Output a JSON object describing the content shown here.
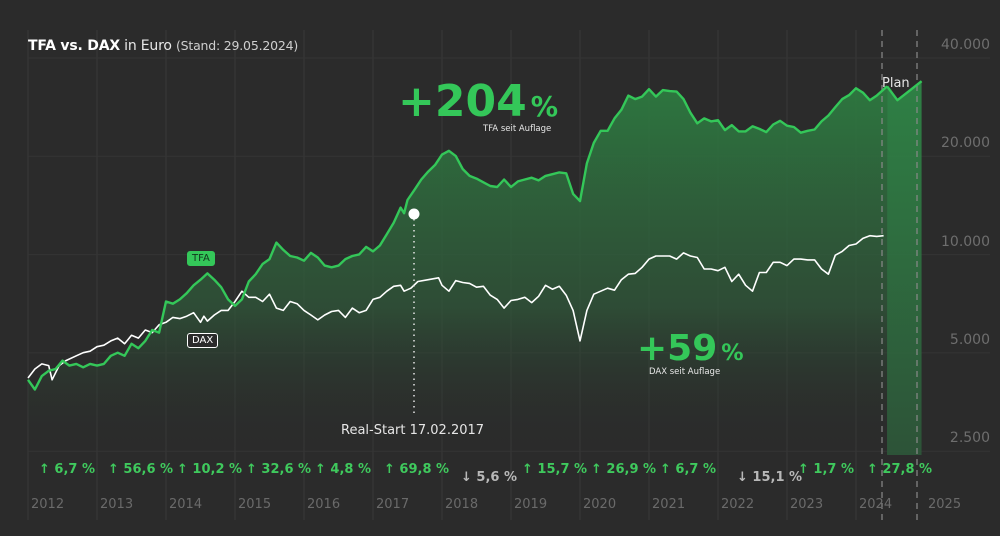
{
  "title": {
    "bold": "TFA vs. DAX",
    "normal": " in Euro ",
    "stand": "(Stand: 29.05.2024)"
  },
  "colors": {
    "background": "#2b2b2b",
    "tfa_line": "#34c759",
    "dax_line": "#ffffff",
    "up_return": "#3fc95d",
    "down_return": "#b8b8b8",
    "grid": "#3a3a3a",
    "axis_text": "#6e6e6e"
  },
  "annotations": {
    "tfa_big": "+204",
    "tfa_big_pct": "%",
    "tfa_sub": "TFA seit Auflage",
    "dax_big": "+59",
    "dax_big_pct": "%",
    "dax_sub": "DAX seit Auflage",
    "tfa_tag": "TFA",
    "dax_tag": "DAX",
    "real_start": "Real-Start 17.02.2017",
    "plan": "Plan"
  },
  "y_axis": {
    "ticks": [
      "40.000",
      "20.000",
      "10.000",
      "5.000",
      "2.500"
    ]
  },
  "x_axis": {
    "years": [
      "2012",
      "2013",
      "2014",
      "2015",
      "2016",
      "2017",
      "2018",
      "2019",
      "2020",
      "2021",
      "2022",
      "2023",
      "2024",
      "2025"
    ]
  },
  "yearly_returns": [
    {
      "year": "2012",
      "dir": "up",
      "arrow": "↑",
      "label": "6,7 %"
    },
    {
      "year": "2013",
      "dir": "up",
      "arrow": "↑",
      "label": "56,6 %"
    },
    {
      "year": "2014",
      "dir": "up",
      "arrow": "↑",
      "label": "10,2 %"
    },
    {
      "year": "2015",
      "dir": "up",
      "arrow": "↑",
      "label": "32,6 %"
    },
    {
      "year": "2016",
      "dir": "up",
      "arrow": "↑",
      "label": "4,8 %"
    },
    {
      "year": "2017",
      "dir": "up",
      "arrow": "↑",
      "label": "69,8 %"
    },
    {
      "year": "2018",
      "dir": "down",
      "arrow": "↓",
      "label": "5,6 %"
    },
    {
      "year": "2019",
      "dir": "up",
      "arrow": "↑",
      "label": "15,7 %"
    },
    {
      "year": "2020",
      "dir": "up",
      "arrow": "↑",
      "label": "26,9 %"
    },
    {
      "year": "2021",
      "dir": "up",
      "arrow": "↑",
      "label": "6,7 %"
    },
    {
      "year": "2022",
      "dir": "down",
      "arrow": "↓",
      "label": "15,1 %"
    },
    {
      "year": "2023",
      "dir": "up",
      "arrow": "↑",
      "label": "1,7 %"
    },
    {
      "year": "2024",
      "dir": "up",
      "arrow": "↑",
      "label": "27,8 %"
    }
  ],
  "chart_data": {
    "type": "line",
    "title": "TFA vs. DAX in Euro (Stand: 29.05.2024)",
    "xlabel": "",
    "ylabel": "",
    "y_scale": "log",
    "ylim": [
      2500,
      40000
    ],
    "y_ticks": [
      2500,
      5000,
      10000,
      20000,
      40000
    ],
    "x_ticks": [
      2012,
      2013,
      2014,
      2015,
      2016,
      2017,
      2018,
      2019,
      2020,
      2021,
      2022,
      2023,
      2024,
      2025
    ],
    "grid": true,
    "legend": "inline labels",
    "series": [
      {
        "name": "TFA",
        "color": "#34c759",
        "total_return_label": "+204 % TFA seit Auflage",
        "points": [
          [
            2012.0,
            3800
          ],
          [
            2012.1,
            3550
          ],
          [
            2012.2,
            3900
          ],
          [
            2012.3,
            4050
          ],
          [
            2012.4,
            4100
          ],
          [
            2012.5,
            4350
          ],
          [
            2012.6,
            4200
          ],
          [
            2012.7,
            4250
          ],
          [
            2012.8,
            4150
          ],
          [
            2012.9,
            4250
          ],
          [
            2013.0,
            4200
          ],
          [
            2013.1,
            4250
          ],
          [
            2013.2,
            4500
          ],
          [
            2013.3,
            4600
          ],
          [
            2013.4,
            4500
          ],
          [
            2013.5,
            4900
          ],
          [
            2013.6,
            4750
          ],
          [
            2013.7,
            5000
          ],
          [
            2013.8,
            5400
          ],
          [
            2013.9,
            5300
          ],
          [
            2014.0,
            6600
          ],
          [
            2014.1,
            6500
          ],
          [
            2014.2,
            6700
          ],
          [
            2014.3,
            7000
          ],
          [
            2014.4,
            7400
          ],
          [
            2014.5,
            7700
          ],
          [
            2014.6,
            8050
          ],
          [
            2014.7,
            7700
          ],
          [
            2014.8,
            7300
          ],
          [
            2014.9,
            6700
          ],
          [
            2015.0,
            6400
          ],
          [
            2015.1,
            6700
          ],
          [
            2015.2,
            7600
          ],
          [
            2015.3,
            8000
          ],
          [
            2015.4,
            8600
          ],
          [
            2015.5,
            8900
          ],
          [
            2015.6,
            10000
          ],
          [
            2015.7,
            9500
          ],
          [
            2015.8,
            9100
          ],
          [
            2015.9,
            9000
          ],
          [
            2016.0,
            8800
          ],
          [
            2016.1,
            9300
          ],
          [
            2016.2,
            9000
          ],
          [
            2016.3,
            8500
          ],
          [
            2016.4,
            8400
          ],
          [
            2016.5,
            8500
          ],
          [
            2016.6,
            8900
          ],
          [
            2016.7,
            9100
          ],
          [
            2016.8,
            9200
          ],
          [
            2016.9,
            9700
          ],
          [
            2017.0,
            9400
          ],
          [
            2017.1,
            9800
          ],
          [
            2017.2,
            10600
          ],
          [
            2017.3,
            11500
          ],
          [
            2017.4,
            12800
          ],
          [
            2017.45,
            12300
          ],
          [
            2017.5,
            13500
          ],
          [
            2017.6,
            14500
          ],
          [
            2017.7,
            15600
          ],
          [
            2017.8,
            16500
          ],
          [
            2017.9,
            17300
          ],
          [
            2018.0,
            18600
          ],
          [
            2018.1,
            19100
          ],
          [
            2018.2,
            18400
          ],
          [
            2018.3,
            16800
          ],
          [
            2018.4,
            16000
          ],
          [
            2018.5,
            15700
          ],
          [
            2018.6,
            15300
          ],
          [
            2018.7,
            14900
          ],
          [
            2018.8,
            14800
          ],
          [
            2018.9,
            15600
          ],
          [
            2019.0,
            14800
          ],
          [
            2019.1,
            15400
          ],
          [
            2019.2,
            15600
          ],
          [
            2019.3,
            15800
          ],
          [
            2019.4,
            15500
          ],
          [
            2019.5,
            16000
          ],
          [
            2019.6,
            16200
          ],
          [
            2019.7,
            16400
          ],
          [
            2019.8,
            16300
          ],
          [
            2019.9,
            14100
          ],
          [
            2020.0,
            13400
          ],
          [
            2020.1,
            17500
          ],
          [
            2020.2,
            20200
          ],
          [
            2020.3,
            22000
          ],
          [
            2020.4,
            22000
          ],
          [
            2020.5,
            24000
          ],
          [
            2020.6,
            25500
          ],
          [
            2020.7,
            28200
          ],
          [
            2020.8,
            27500
          ],
          [
            2020.9,
            28000
          ],
          [
            2021.0,
            29500
          ],
          [
            2021.1,
            28000
          ],
          [
            2021.2,
            29300
          ],
          [
            2021.3,
            29100
          ],
          [
            2021.4,
            29000
          ],
          [
            2021.5,
            27500
          ],
          [
            2021.6,
            25000
          ],
          [
            2021.7,
            23200
          ],
          [
            2021.8,
            24000
          ],
          [
            2021.9,
            23500
          ],
          [
            2022.0,
            23700
          ],
          [
            2022.1,
            22100
          ],
          [
            2022.2,
            22900
          ],
          [
            2022.3,
            21900
          ],
          [
            2022.4,
            21900
          ],
          [
            2022.5,
            22700
          ],
          [
            2022.6,
            22300
          ],
          [
            2022.7,
            21800
          ],
          [
            2022.8,
            23000
          ],
          [
            2022.9,
            23600
          ],
          [
            2023.0,
            22800
          ],
          [
            2023.1,
            22600
          ],
          [
            2023.2,
            21700
          ],
          [
            2023.3,
            22000
          ],
          [
            2023.4,
            22200
          ],
          [
            2023.5,
            23500
          ],
          [
            2023.6,
            24500
          ],
          [
            2023.7,
            26000
          ],
          [
            2023.8,
            27500
          ],
          [
            2023.9,
            28300
          ],
          [
            2024.0,
            29700
          ],
          [
            2024.1,
            28800
          ],
          [
            2024.2,
            27300
          ],
          [
            2024.3,
            28200
          ],
          [
            2024.45,
            30100
          ]
        ]
      },
      {
        "name": "DAX",
        "color": "#ffffff",
        "total_return_label": "+59 % DAX seit Auflage",
        "points": [
          [
            2012.0,
            3850
          ],
          [
            2012.1,
            4100
          ],
          [
            2012.2,
            4250
          ],
          [
            2012.3,
            4200
          ],
          [
            2012.35,
            3800
          ],
          [
            2012.45,
            4200
          ],
          [
            2012.55,
            4350
          ],
          [
            2012.7,
            4500
          ],
          [
            2012.8,
            4600
          ],
          [
            2012.9,
            4650
          ],
          [
            2013.0,
            4800
          ],
          [
            2013.1,
            4850
          ],
          [
            2013.2,
            5000
          ],
          [
            2013.3,
            5100
          ],
          [
            2013.4,
            4900
          ],
          [
            2013.5,
            5200
          ],
          [
            2013.6,
            5100
          ],
          [
            2013.7,
            5400
          ],
          [
            2013.8,
            5300
          ],
          [
            2013.9,
            5600
          ],
          [
            2014.0,
            5700
          ],
          [
            2014.1,
            5900
          ],
          [
            2014.2,
            5850
          ],
          [
            2014.3,
            5950
          ],
          [
            2014.4,
            6100
          ],
          [
            2014.5,
            5700
          ],
          [
            2014.55,
            5950
          ],
          [
            2014.6,
            5750
          ],
          [
            2014.7,
            6000
          ],
          [
            2014.8,
            6200
          ],
          [
            2014.9,
            6200
          ],
          [
            2015.0,
            6600
          ],
          [
            2015.1,
            7100
          ],
          [
            2015.2,
            6800
          ],
          [
            2015.3,
            6800
          ],
          [
            2015.4,
            6600
          ],
          [
            2015.5,
            6950
          ],
          [
            2015.6,
            6300
          ],
          [
            2015.7,
            6200
          ],
          [
            2015.8,
            6600
          ],
          [
            2015.9,
            6500
          ],
          [
            2016.0,
            6200
          ],
          [
            2016.1,
            6000
          ],
          [
            2016.2,
            5800
          ],
          [
            2016.3,
            6000
          ],
          [
            2016.4,
            6150
          ],
          [
            2016.5,
            6200
          ],
          [
            2016.6,
            5900
          ],
          [
            2016.7,
            6300
          ],
          [
            2016.8,
            6100
          ],
          [
            2016.9,
            6200
          ],
          [
            2017.0,
            6700
          ],
          [
            2017.1,
            6800
          ],
          [
            2017.2,
            7100
          ],
          [
            2017.3,
            7350
          ],
          [
            2017.4,
            7400
          ],
          [
            2017.45,
            7100
          ],
          [
            2017.55,
            7250
          ],
          [
            2017.65,
            7600
          ],
          [
            2017.8,
            7700
          ],
          [
            2017.95,
            7800
          ],
          [
            2018.0,
            7400
          ],
          [
            2018.1,
            7100
          ],
          [
            2018.2,
            7650
          ],
          [
            2018.3,
            7550
          ],
          [
            2018.4,
            7500
          ],
          [
            2018.5,
            7300
          ],
          [
            2018.6,
            7350
          ],
          [
            2018.7,
            6900
          ],
          [
            2018.8,
            6700
          ],
          [
            2018.9,
            6300
          ],
          [
            2019.0,
            6650
          ],
          [
            2019.1,
            6700
          ],
          [
            2019.2,
            6800
          ],
          [
            2019.3,
            6550
          ],
          [
            2019.4,
            6850
          ],
          [
            2019.5,
            7400
          ],
          [
            2019.6,
            7200
          ],
          [
            2019.7,
            7350
          ],
          [
            2019.8,
            6900
          ],
          [
            2019.9,
            6200
          ],
          [
            2020.0,
            5000
          ],
          [
            2020.1,
            6200
          ],
          [
            2020.2,
            6950
          ],
          [
            2020.3,
            7100
          ],
          [
            2020.4,
            7250
          ],
          [
            2020.5,
            7150
          ],
          [
            2020.6,
            7700
          ],
          [
            2020.7,
            8000
          ],
          [
            2020.8,
            8050
          ],
          [
            2020.9,
            8400
          ],
          [
            2021.0,
            8900
          ],
          [
            2021.1,
            9100
          ],
          [
            2021.2,
            9100
          ],
          [
            2021.3,
            9100
          ],
          [
            2021.4,
            8900
          ],
          [
            2021.5,
            9300
          ],
          [
            2021.6,
            9100
          ],
          [
            2021.7,
            9000
          ],
          [
            2021.8,
            8300
          ],
          [
            2021.9,
            8300
          ],
          [
            2022.0,
            8200
          ],
          [
            2022.1,
            8400
          ],
          [
            2022.2,
            7600
          ],
          [
            2022.3,
            8000
          ],
          [
            2022.4,
            7400
          ],
          [
            2022.5,
            7100
          ],
          [
            2022.6,
            8100
          ],
          [
            2022.7,
            8100
          ],
          [
            2022.8,
            8700
          ],
          [
            2022.9,
            8700
          ],
          [
            2023.0,
            8500
          ],
          [
            2023.1,
            8900
          ],
          [
            2023.2,
            8900
          ],
          [
            2023.3,
            8850
          ],
          [
            2023.4,
            8850
          ],
          [
            2023.5,
            8300
          ],
          [
            2023.6,
            8000
          ],
          [
            2023.7,
            9150
          ],
          [
            2023.8,
            9400
          ],
          [
            2023.9,
            9800
          ],
          [
            2024.0,
            9900
          ],
          [
            2024.1,
            10300
          ],
          [
            2024.2,
            10500
          ],
          [
            2024.3,
            10450
          ],
          [
            2024.4,
            10500
          ]
        ]
      }
    ],
    "annotations": [
      {
        "text": "Real-Start 17.02.2017",
        "x": 2017.45
      },
      {
        "text": "Plan",
        "x_range": [
          2024.3,
          2024.8
        ]
      }
    ]
  }
}
